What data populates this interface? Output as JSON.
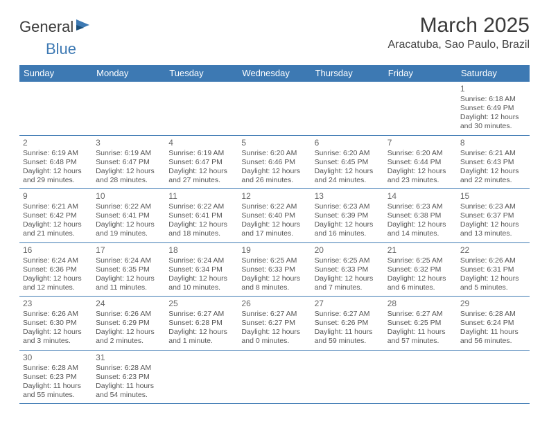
{
  "brand": {
    "name_a": "General",
    "name_b": "Blue"
  },
  "title": "March 2025",
  "location": "Aracatuba, Sao Paulo, Brazil",
  "colors": {
    "header_bg": "#3d79b3",
    "header_text": "#ffffff",
    "cell_border": "#3d79b3",
    "body_text": "#555555",
    "page_bg": "#ffffff",
    "title_text": "#3a3a3a",
    "logo_text": "#3c3c3c",
    "logo_accent": "#3d79b3"
  },
  "typography": {
    "title_fontsize": 30,
    "location_fontsize": 16,
    "header_fontsize": 13,
    "cell_fontsize": 10.5,
    "daynum_fontsize": 12,
    "logo_fontsize": 22
  },
  "weekdays": [
    "Sunday",
    "Monday",
    "Tuesday",
    "Wednesday",
    "Thursday",
    "Friday",
    "Saturday"
  ],
  "weeks": [
    [
      null,
      null,
      null,
      null,
      null,
      null,
      {
        "n": "1",
        "sr": "6:18 AM",
        "ss": "6:49 PM",
        "dl": "12 hours and 30 minutes."
      }
    ],
    [
      {
        "n": "2",
        "sr": "6:19 AM",
        "ss": "6:48 PM",
        "dl": "12 hours and 29 minutes."
      },
      {
        "n": "3",
        "sr": "6:19 AM",
        "ss": "6:47 PM",
        "dl": "12 hours and 28 minutes."
      },
      {
        "n": "4",
        "sr": "6:19 AM",
        "ss": "6:47 PM",
        "dl": "12 hours and 27 minutes."
      },
      {
        "n": "5",
        "sr": "6:20 AM",
        "ss": "6:46 PM",
        "dl": "12 hours and 26 minutes."
      },
      {
        "n": "6",
        "sr": "6:20 AM",
        "ss": "6:45 PM",
        "dl": "12 hours and 24 minutes."
      },
      {
        "n": "7",
        "sr": "6:20 AM",
        "ss": "6:44 PM",
        "dl": "12 hours and 23 minutes."
      },
      {
        "n": "8",
        "sr": "6:21 AM",
        "ss": "6:43 PM",
        "dl": "12 hours and 22 minutes."
      }
    ],
    [
      {
        "n": "9",
        "sr": "6:21 AM",
        "ss": "6:42 PM",
        "dl": "12 hours and 21 minutes."
      },
      {
        "n": "10",
        "sr": "6:22 AM",
        "ss": "6:41 PM",
        "dl": "12 hours and 19 minutes."
      },
      {
        "n": "11",
        "sr": "6:22 AM",
        "ss": "6:41 PM",
        "dl": "12 hours and 18 minutes."
      },
      {
        "n": "12",
        "sr": "6:22 AM",
        "ss": "6:40 PM",
        "dl": "12 hours and 17 minutes."
      },
      {
        "n": "13",
        "sr": "6:23 AM",
        "ss": "6:39 PM",
        "dl": "12 hours and 16 minutes."
      },
      {
        "n": "14",
        "sr": "6:23 AM",
        "ss": "6:38 PM",
        "dl": "12 hours and 14 minutes."
      },
      {
        "n": "15",
        "sr": "6:23 AM",
        "ss": "6:37 PM",
        "dl": "12 hours and 13 minutes."
      }
    ],
    [
      {
        "n": "16",
        "sr": "6:24 AM",
        "ss": "6:36 PM",
        "dl": "12 hours and 12 minutes."
      },
      {
        "n": "17",
        "sr": "6:24 AM",
        "ss": "6:35 PM",
        "dl": "12 hours and 11 minutes."
      },
      {
        "n": "18",
        "sr": "6:24 AM",
        "ss": "6:34 PM",
        "dl": "12 hours and 10 minutes."
      },
      {
        "n": "19",
        "sr": "6:25 AM",
        "ss": "6:33 PM",
        "dl": "12 hours and 8 minutes."
      },
      {
        "n": "20",
        "sr": "6:25 AM",
        "ss": "6:33 PM",
        "dl": "12 hours and 7 minutes."
      },
      {
        "n": "21",
        "sr": "6:25 AM",
        "ss": "6:32 PM",
        "dl": "12 hours and 6 minutes."
      },
      {
        "n": "22",
        "sr": "6:26 AM",
        "ss": "6:31 PM",
        "dl": "12 hours and 5 minutes."
      }
    ],
    [
      {
        "n": "23",
        "sr": "6:26 AM",
        "ss": "6:30 PM",
        "dl": "12 hours and 3 minutes."
      },
      {
        "n": "24",
        "sr": "6:26 AM",
        "ss": "6:29 PM",
        "dl": "12 hours and 2 minutes."
      },
      {
        "n": "25",
        "sr": "6:27 AM",
        "ss": "6:28 PM",
        "dl": "12 hours and 1 minute."
      },
      {
        "n": "26",
        "sr": "6:27 AM",
        "ss": "6:27 PM",
        "dl": "12 hours and 0 minutes."
      },
      {
        "n": "27",
        "sr": "6:27 AM",
        "ss": "6:26 PM",
        "dl": "11 hours and 59 minutes."
      },
      {
        "n": "28",
        "sr": "6:27 AM",
        "ss": "6:25 PM",
        "dl": "11 hours and 57 minutes."
      },
      {
        "n": "29",
        "sr": "6:28 AM",
        "ss": "6:24 PM",
        "dl": "11 hours and 56 minutes."
      }
    ],
    [
      {
        "n": "30",
        "sr": "6:28 AM",
        "ss": "6:23 PM",
        "dl": "11 hours and 55 minutes."
      },
      {
        "n": "31",
        "sr": "6:28 AM",
        "ss": "6:23 PM",
        "dl": "11 hours and 54 minutes."
      },
      null,
      null,
      null,
      null,
      null
    ]
  ],
  "labels": {
    "sunrise": "Sunrise:",
    "sunset": "Sunset:",
    "daylight": "Daylight:"
  }
}
